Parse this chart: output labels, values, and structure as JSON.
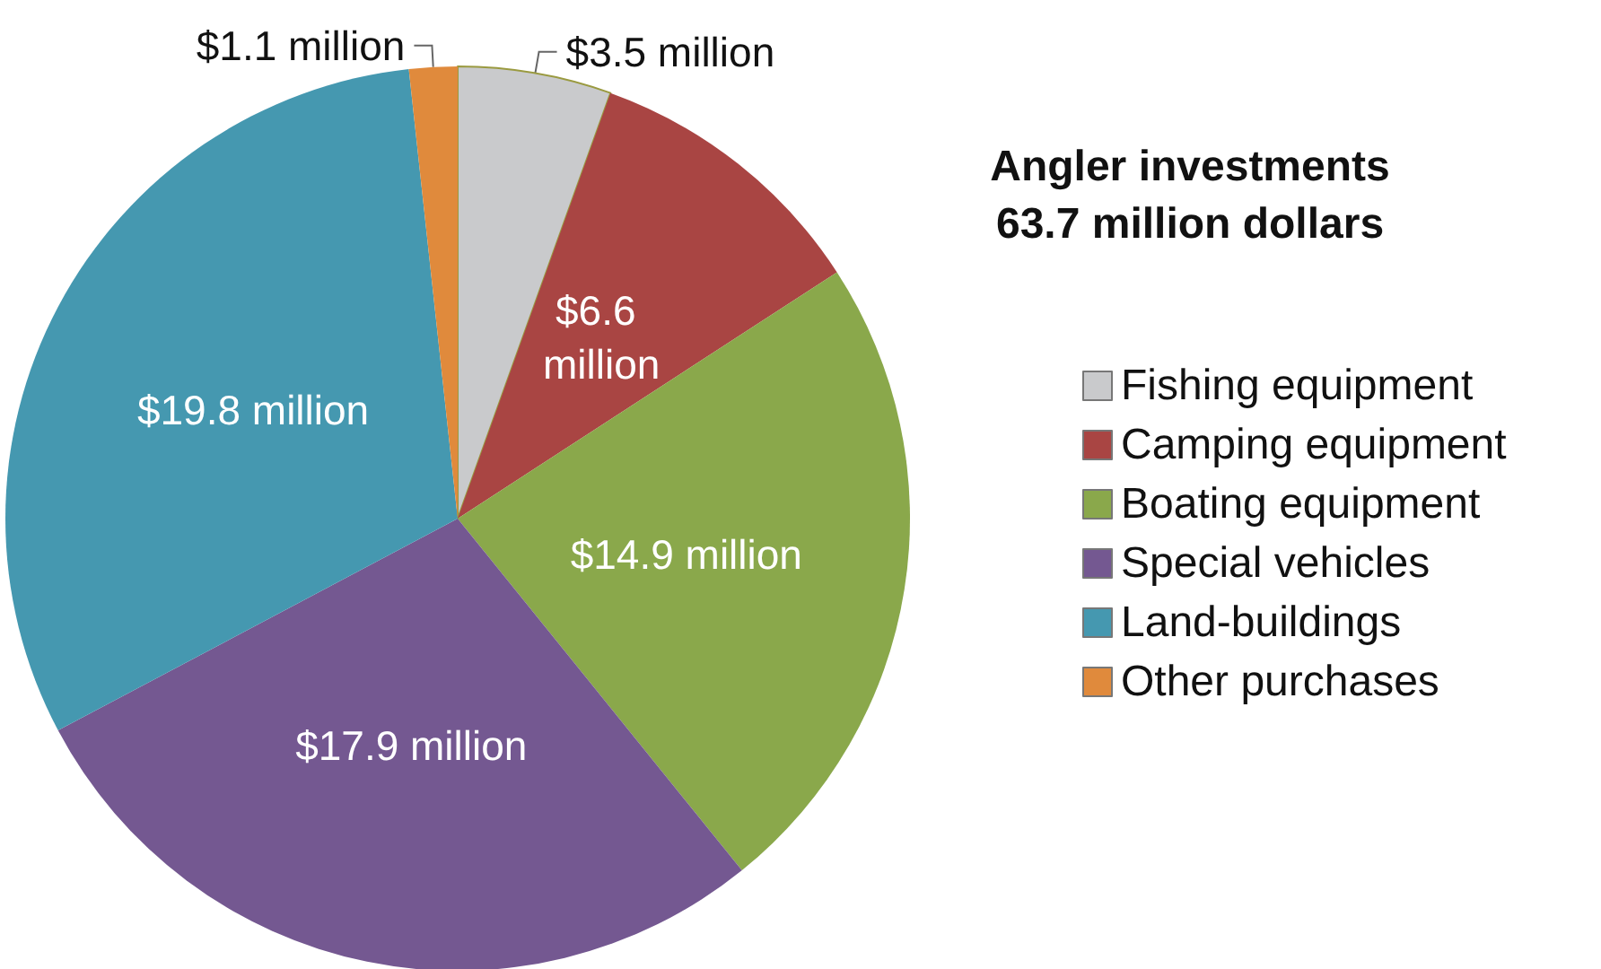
{
  "chart_data": {
    "type": "pie",
    "title": "Angler investments\n63.7 million dollars",
    "categories": [
      "Fishing equipment",
      "Camping equipment",
      "Boating equipment",
      "Special vehicles",
      "Land-buildings",
      "Other purchases"
    ],
    "values": [
      3.5,
      6.6,
      14.9,
      17.9,
      19.8,
      1.1
    ],
    "colors": [
      "#c9cacc",
      "#a94543",
      "#8aa84b",
      "#745891",
      "#4598b0",
      "#e08a3c"
    ],
    "value_labels": [
      "$3.5 million",
      "$6.6 million",
      "$14.9 million",
      "$17.9 million",
      "$19.8 million",
      "$1.1 million"
    ],
    "legend": "right"
  }
}
